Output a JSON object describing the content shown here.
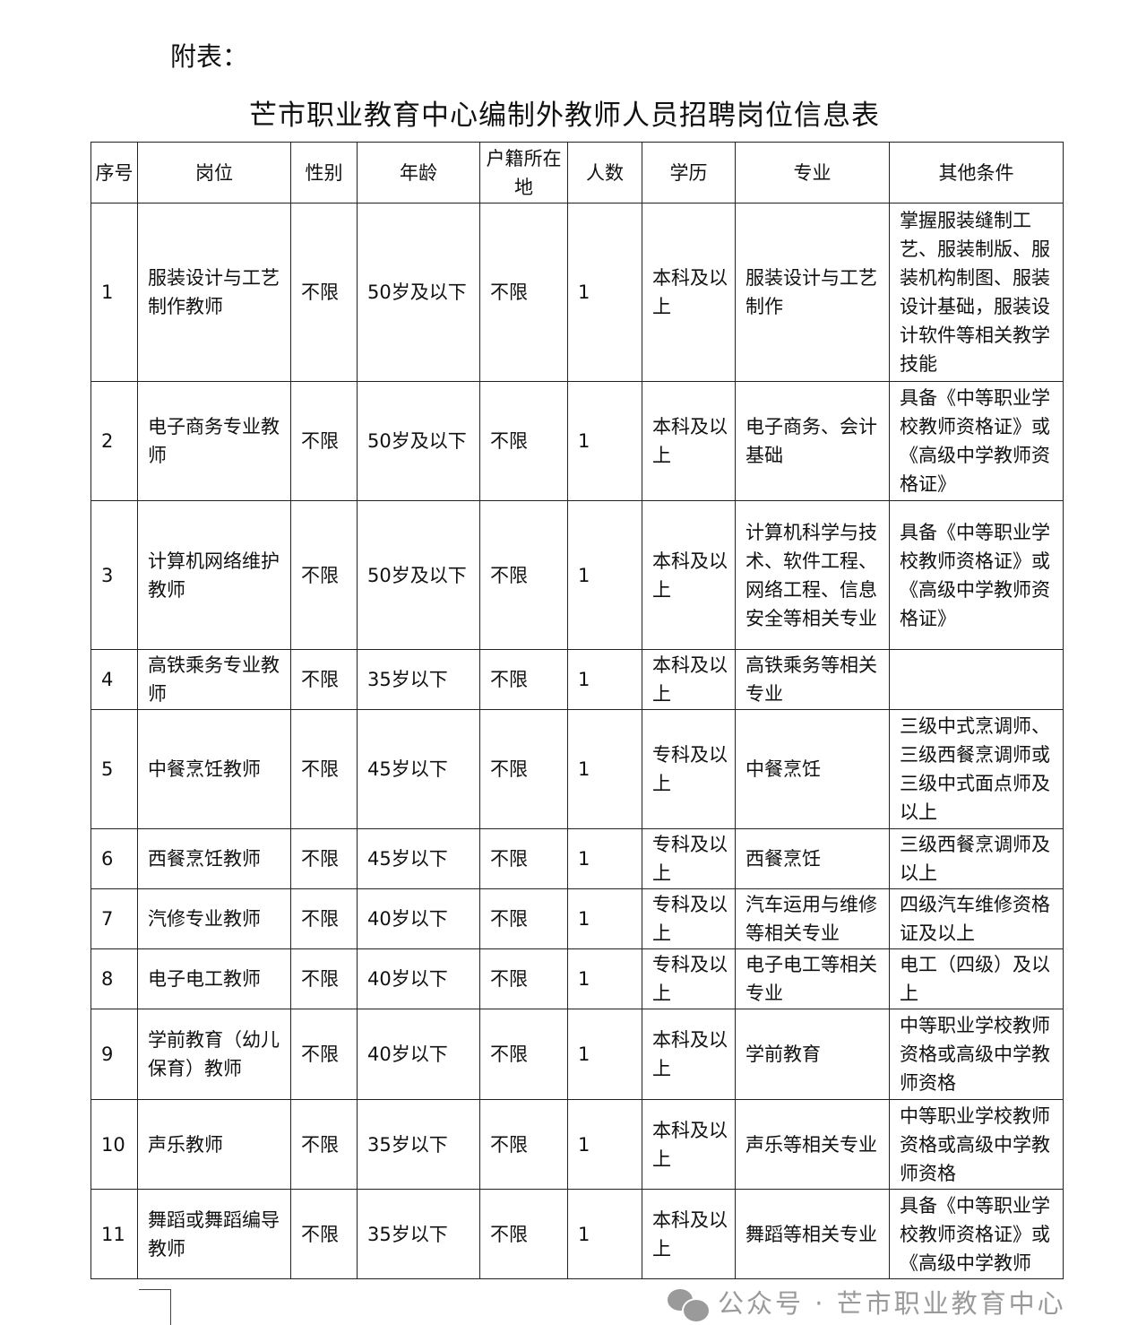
{
  "attachment_label": "附表：",
  "title": "芒市职业教育中心编制外教师人员招聘岗位信息表",
  "headers": [
    "序号",
    "岗位",
    "性别",
    "年龄",
    "户籍所在地",
    "人数",
    "学历",
    "专业",
    "其他条件"
  ],
  "rows": [
    [
      "1",
      "服装设计与工艺制作教师",
      "不限",
      "50岁及以下",
      "不限",
      "1",
      "本科及以上",
      "服装设计与工艺制作",
      "掌握服装缝制工艺、服装制版、服装机构制图、服装设计基础，服装设计软件等相关教学技能"
    ],
    [
      "2",
      "电子商务专业教师",
      "不限",
      "50岁及以下",
      "不限",
      "1",
      "本科及以上",
      "电子商务、会计基础",
      "具备《中等职业学校教师资格证》或《高级中学教师资格证》"
    ],
    [
      "3",
      "计算机网络维护教师",
      "不限",
      "50岁及以下",
      "不限",
      "1",
      "本科及以上",
      "计算机科学与技术、软件工程、网络工程、信息安全等相关专业",
      "具备《中等职业学校教师资格证》或《高级中学教师资格证》"
    ],
    [
      "4",
      "高铁乘务专业教师",
      "不限",
      "35岁以下",
      "不限",
      "1",
      "本科及以上",
      "高铁乘务等相关专业",
      ""
    ],
    [
      "5",
      "中餐烹饪教师",
      "不限",
      "45岁以下",
      "不限",
      "1",
      "专科及以上",
      "中餐烹饪",
      "三级中式烹调师、三级西餐烹调师或三级中式面点师及以上"
    ],
    [
      "6",
      "西餐烹饪教师",
      "不限",
      "45岁以下",
      "不限",
      "1",
      "专科及以上",
      "西餐烹饪",
      "三级西餐烹调师及以上"
    ],
    [
      "7",
      "汽修专业教师",
      "不限",
      "40岁以下",
      "不限",
      "1",
      "专科及以上",
      "汽车运用与维修等相关专业",
      "四级汽车维修资格证及以上"
    ],
    [
      "8",
      "电子电工教师",
      "不限",
      "40岁以下",
      "不限",
      "1",
      "专科及以上",
      "电子电工等相关专业",
      "电工（四级）及以上"
    ],
    [
      "9",
      "学前教育（幼儿保育）教师",
      "不限",
      "40岁以下",
      "不限",
      "1",
      "本科及以上",
      "学前教育",
      "中等职业学校教师资格或高级中学教师资格"
    ],
    [
      "10",
      "声乐教师",
      "不限",
      "35岁以下",
      "不限",
      "1",
      "本科及以上",
      "声乐等相关专业",
      "中等职业学校教师资格或高级中学教师资格"
    ],
    [
      "11",
      "舞蹈或舞蹈编导教师",
      "不限",
      "35岁以下",
      "不限",
      "1",
      "本科及以上",
      "舞蹈等相关专业",
      "具备《中等职业学校教师资格证》或《高级中学教师"
    ]
  ],
  "watermark": "公众号 · 芒市职业教育中心",
  "watermark_icon": "wechat-icon"
}
